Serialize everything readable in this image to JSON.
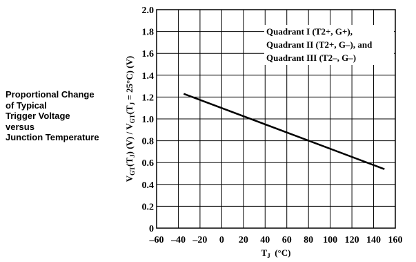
{
  "side_title": {
    "lines": [
      "Proportional Change",
      "of Typical",
      "Trigger Voltage",
      "versus",
      "Junction Temperature"
    ]
  },
  "chart_data": {
    "type": "line",
    "xlim": [
      -60,
      160
    ],
    "ylim": [
      0,
      2.0
    ],
    "x_ticks": [
      -60,
      -40,
      -20,
      0,
      20,
      40,
      60,
      80,
      100,
      120,
      140,
      160
    ],
    "x_tick_labels": [
      "–60",
      "–40",
      "–20",
      "0",
      "20",
      "40",
      "60",
      "80",
      "100",
      "120",
      "140",
      "160"
    ],
    "y_ticks": [
      0,
      0.2,
      0.4,
      0.6,
      0.8,
      1.0,
      1.2,
      1.4,
      1.6,
      1.8,
      2.0
    ],
    "y_tick_labels": [
      "0",
      "0.2",
      "0.4",
      "0.6",
      "0.8",
      "1.0",
      "1.2",
      "1.4",
      "1.6",
      "1.8",
      "2.0"
    ],
    "x_grid": [
      -60,
      -40,
      -20,
      0,
      20,
      40,
      60,
      80,
      100,
      120,
      140,
      160
    ],
    "y_grid": [
      0,
      0.2,
      0.4,
      0.6,
      0.8,
      1.0,
      1.2,
      1.4,
      1.6,
      1.8,
      2.0
    ],
    "xlabel": {
      "main": "T",
      "sub": "J",
      "unit": "(°C)"
    },
    "ylabel": {
      "parts": [
        {
          "t": "V"
        },
        {
          "t": "GT",
          "sub": true
        },
        {
          "t": "(T"
        },
        {
          "t": "J",
          "sub": true
        },
        {
          "t": ") (V) / V"
        },
        {
          "t": "GT",
          "sub": true
        },
        {
          "t": "(T"
        },
        {
          "t": "J",
          "sub": true
        },
        {
          "t": " = 25°C) (V)"
        }
      ]
    },
    "legend_lines": [
      "Quadrant I (T2+, G+),",
      "Quadrant II (T2+, G–), and",
      "Quadrant III (T2–, G–)"
    ],
    "legend_position": "top-right",
    "grid": true,
    "series": [
      {
        "x": [
          -35,
          150
        ],
        "y": [
          1.23,
          0.54
        ]
      }
    ]
  }
}
